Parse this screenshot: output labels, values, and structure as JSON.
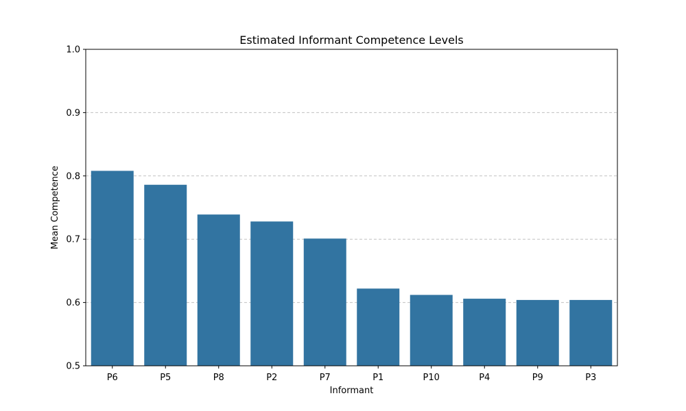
{
  "chart_data": {
    "type": "bar",
    "title": "Estimated Informant Competence Levels",
    "xlabel": "Informant",
    "ylabel": "Mean Competence",
    "categories": [
      "P6",
      "P5",
      "P8",
      "P2",
      "P7",
      "P1",
      "P10",
      "P4",
      "P9",
      "P3"
    ],
    "values": [
      0.808,
      0.786,
      0.739,
      0.728,
      0.701,
      0.622,
      0.612,
      0.606,
      0.604,
      0.604
    ],
    "ylim": [
      0.5,
      1.0
    ],
    "yticks": [
      "0.5",
      "0.6",
      "0.7",
      "0.8",
      "0.9",
      "1.0"
    ],
    "grid": "y-axis dashed",
    "bar_color": "#3274a1",
    "grid_color": "#c0c0c0"
  }
}
